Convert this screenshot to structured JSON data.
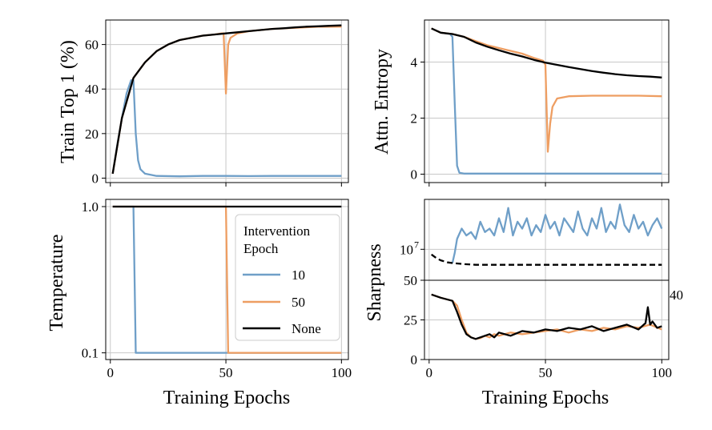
{
  "colors": {
    "ten": "#6f9fc8",
    "fifty": "#ee9e62",
    "none": "#000000"
  },
  "legend": {
    "title_line1": "Intervention",
    "title_line2": "Epoch",
    "entries": [
      "10",
      "50",
      "None"
    ]
  },
  "chart_data": [
    {
      "id": "train-top1",
      "type": "line",
      "ylabel": "Train Top 1 (%)",
      "xlabel": "",
      "xlim": [
        -2,
        103
      ],
      "ylim": [
        -2,
        71
      ],
      "xticks": [
        0,
        50,
        100
      ],
      "yticks": [
        0,
        20,
        40,
        60
      ],
      "ytick_labels": [
        "0",
        "20",
        "40",
        "60"
      ],
      "grid": true,
      "series": [
        {
          "name": "10",
          "x": [
            1,
            3,
            5,
            7,
            9,
            10,
            11,
            12,
            13,
            15,
            20,
            30,
            40,
            50,
            60,
            70,
            80,
            90,
            95,
            100
          ],
          "y": [
            2,
            15,
            27,
            38,
            44,
            44,
            20,
            8,
            4,
            2,
            1,
            0.8,
            1,
            1,
            0.9,
            1,
            1,
            1,
            1,
            1
          ]
        },
        {
          "name": "50",
          "x": [
            1,
            5,
            10,
            15,
            20,
            25,
            30,
            35,
            40,
            45,
            48,
            49,
            50,
            51,
            52,
            55,
            60,
            70,
            80,
            90,
            100
          ],
          "y": [
            2,
            27,
            45,
            52,
            57,
            60,
            62,
            63,
            64,
            64.5,
            65,
            65,
            38,
            60,
            63,
            65,
            66,
            67,
            67.5,
            68,
            68
          ]
        },
        {
          "name": "None",
          "x": [
            1,
            5,
            10,
            15,
            20,
            25,
            30,
            35,
            40,
            45,
            50,
            55,
            60,
            65,
            70,
            75,
            80,
            85,
            90,
            95,
            100
          ],
          "y": [
            2,
            27,
            45,
            52,
            57,
            60,
            62,
            63,
            64,
            64.5,
            65,
            65.5,
            66,
            66.5,
            67,
            67.3,
            67.7,
            68,
            68.2,
            68.4,
            68.6
          ]
        }
      ]
    },
    {
      "id": "attn-entropy",
      "type": "line",
      "ylabel": "Attn. Entropy",
      "xlabel": "",
      "xlim": [
        -2,
        103
      ],
      "ylim": [
        -0.3,
        5.5
      ],
      "xticks": [
        0,
        50,
        100
      ],
      "yticks": [
        0,
        2,
        4
      ],
      "ytick_labels": [
        "0",
        "2",
        "4"
      ],
      "grid": true,
      "series": [
        {
          "name": "10",
          "x": [
            1,
            5,
            9,
            10,
            11,
            12,
            13,
            15,
            20,
            30,
            50,
            70,
            100
          ],
          "y": [
            5.2,
            5.05,
            5.0,
            4.9,
            2.5,
            0.3,
            0.05,
            0.02,
            0.02,
            0.02,
            0.02,
            0.02,
            0.02
          ]
        },
        {
          "name": "50",
          "x": [
            1,
            5,
            10,
            15,
            20,
            25,
            30,
            35,
            40,
            45,
            49,
            50,
            51,
            52,
            53,
            55,
            60,
            70,
            80,
            90,
            100
          ],
          "y": [
            5.2,
            5.05,
            5.0,
            4.9,
            4.75,
            4.6,
            4.5,
            4.4,
            4.3,
            4.15,
            4.05,
            3.9,
            0.8,
            1.8,
            2.4,
            2.7,
            2.78,
            2.8,
            2.8,
            2.8,
            2.78
          ]
        },
        {
          "name": "None",
          "x": [
            1,
            5,
            10,
            15,
            20,
            25,
            30,
            35,
            40,
            45,
            50,
            55,
            60,
            65,
            70,
            75,
            80,
            85,
            90,
            95,
            100
          ],
          "y": [
            5.2,
            5.05,
            5.0,
            4.9,
            4.7,
            4.55,
            4.42,
            4.3,
            4.2,
            4.08,
            3.98,
            3.9,
            3.82,
            3.75,
            3.68,
            3.62,
            3.57,
            3.53,
            3.5,
            3.48,
            3.45
          ]
        }
      ]
    },
    {
      "id": "temperature",
      "type": "line",
      "ylabel": "Temperature",
      "xlabel": "Training Epochs",
      "yscale": "log",
      "xlim": [
        -2,
        103
      ],
      "ylim": [
        0.09,
        1.12
      ],
      "xticks": [
        0,
        50,
        100
      ],
      "xtick_labels": [
        "0",
        "50",
        "100"
      ],
      "yticks": [
        0.1,
        1.0
      ],
      "ytick_labels": [
        "0.1",
        "1.0"
      ],
      "grid": true,
      "series": [
        {
          "name": "10",
          "x": [
            1,
            10,
            11,
            100
          ],
          "y": [
            1.0,
            1.0,
            0.1,
            0.1
          ]
        },
        {
          "name": "50",
          "x": [
            1,
            50,
            51,
            100
          ],
          "y": [
            1.0,
            1.0,
            0.1,
            0.1
          ]
        },
        {
          "name": "None",
          "x": [
            1,
            100
          ],
          "y": [
            1.0,
            1.0
          ]
        }
      ]
    },
    {
      "id": "sharpness",
      "type": "line",
      "ylabel": "Sharpness",
      "xlabel": "Training Epochs",
      "broken_axis": true,
      "xlim": [
        -2,
        103
      ],
      "xticks": [
        0,
        50,
        100
      ],
      "xtick_labels": [
        "0",
        "50",
        "100"
      ],
      "upper": {
        "yscale": "log",
        "ylim_log10": [
          6.1,
          8.45
        ],
        "yticks": [
          "10^7"
        ],
        "ytick_label_base": "10",
        "ytick_label_exp": "7"
      },
      "lower": {
        "ylim": [
          0,
          50
        ],
        "yticks": [
          0,
          25,
          50
        ],
        "ytick_labels": [
          "0",
          "25",
          "50"
        ]
      },
      "grid": true,
      "series": [
        {
          "name": "10 (upper, log10)",
          "x": [
            10,
            11,
            12,
            14,
            16,
            18,
            20,
            22,
            24,
            26,
            28,
            30,
            32,
            34,
            36,
            38,
            40,
            42,
            44,
            46,
            48,
            50,
            52,
            54,
            56,
            58,
            60,
            62,
            64,
            66,
            68,
            70,
            72,
            74,
            76,
            78,
            80,
            82,
            84,
            86,
            88,
            90,
            92,
            94,
            96,
            98,
            100
          ],
          "y": [
            6.6,
            6.9,
            7.3,
            7.6,
            7.4,
            7.5,
            7.3,
            7.8,
            7.5,
            7.6,
            7.4,
            7.9,
            7.5,
            8.2,
            7.4,
            7.8,
            7.6,
            7.9,
            7.4,
            7.7,
            7.5,
            8.0,
            7.6,
            7.8,
            7.4,
            7.9,
            7.7,
            7.5,
            8.1,
            7.6,
            7.4,
            7.9,
            7.6,
            8.2,
            7.5,
            7.8,
            7.6,
            8.3,
            7.7,
            7.5,
            8.0,
            7.6,
            7.8,
            7.4,
            7.7,
            7.9,
            7.6
          ]
        },
        {
          "name": "None (upper dashed, log10)",
          "x": [
            1,
            3,
            5,
            8,
            10,
            15,
            20,
            30,
            40,
            50,
            60,
            70,
            80,
            90,
            100
          ],
          "y": [
            6.85,
            6.75,
            6.68,
            6.62,
            6.6,
            6.57,
            6.55,
            6.55,
            6.55,
            6.55,
            6.55,
            6.55,
            6.55,
            6.55,
            6.55
          ]
        },
        {
          "name": "50",
          "x": [
            1,
            5,
            10,
            12,
            14,
            16,
            18,
            20,
            22,
            24,
            26,
            28,
            30,
            35,
            40,
            45,
            50,
            55,
            60,
            65,
            70,
            75,
            80,
            85,
            90,
            95,
            100
          ],
          "y": [
            41,
            39,
            37,
            34,
            25,
            17,
            14,
            13,
            13.5,
            15,
            14,
            16,
            15,
            17,
            16,
            17,
            18,
            19,
            17,
            19,
            18,
            20,
            19,
            21,
            20,
            22,
            19
          ]
        },
        {
          "name": "None",
          "x": [
            1,
            5,
            10,
            12,
            14,
            16,
            18,
            20,
            22,
            24,
            26,
            28,
            30,
            35,
            40,
            45,
            50,
            55,
            60,
            65,
            70,
            75,
            80,
            85,
            90,
            93,
            94,
            95,
            96,
            98,
            100
          ],
          "y": [
            41,
            39,
            37,
            30,
            22,
            16,
            14,
            13,
            14,
            15,
            16,
            14,
            17,
            15,
            18,
            17,
            19,
            18,
            20,
            19,
            21,
            18,
            20,
            22,
            19,
            23,
            33,
            22,
            24,
            20,
            21
          ]
        }
      ],
      "edge_label": "40"
    }
  ]
}
